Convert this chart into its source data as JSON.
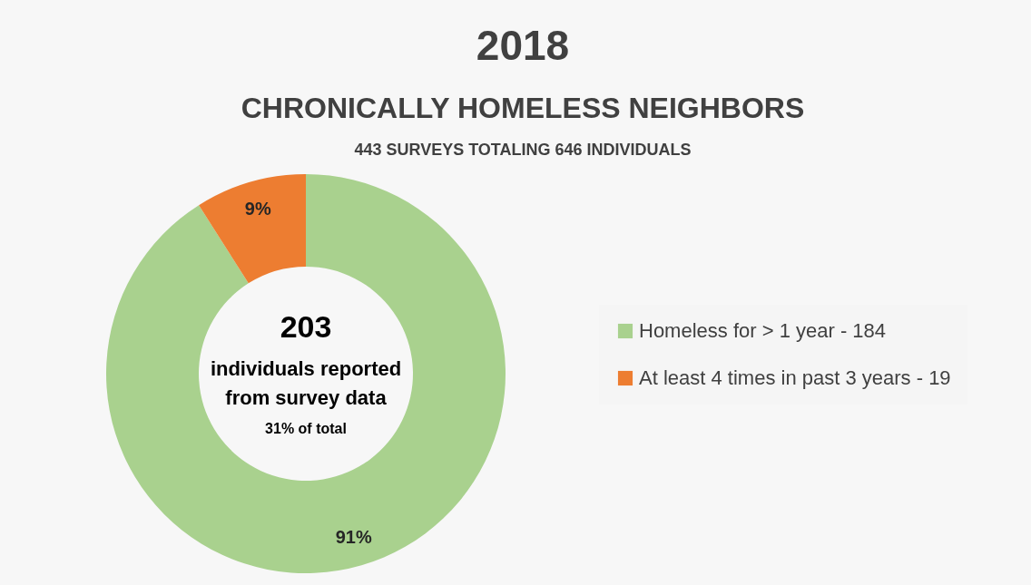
{
  "chart_data": {
    "type": "donut",
    "title": "2018",
    "subtitle": "CHRONICALLY HOMELESS NEIGHBORS",
    "categories": [
      "Homeless for > 1 year - 184",
      "At least 4 times in past 3 years - 19"
    ],
    "values": [
      91,
      9
    ],
    "colors": [
      "#a9d18e",
      "#ed7d31"
    ],
    "value_labels": [
      "91%",
      "9%"
    ],
    "legend": "right",
    "annotations": [
      "443 SURVEYS TOTALING 646 INDIVIDUALS",
      "203",
      "individuals reported",
      "from survey data",
      "31% of total"
    ]
  }
}
